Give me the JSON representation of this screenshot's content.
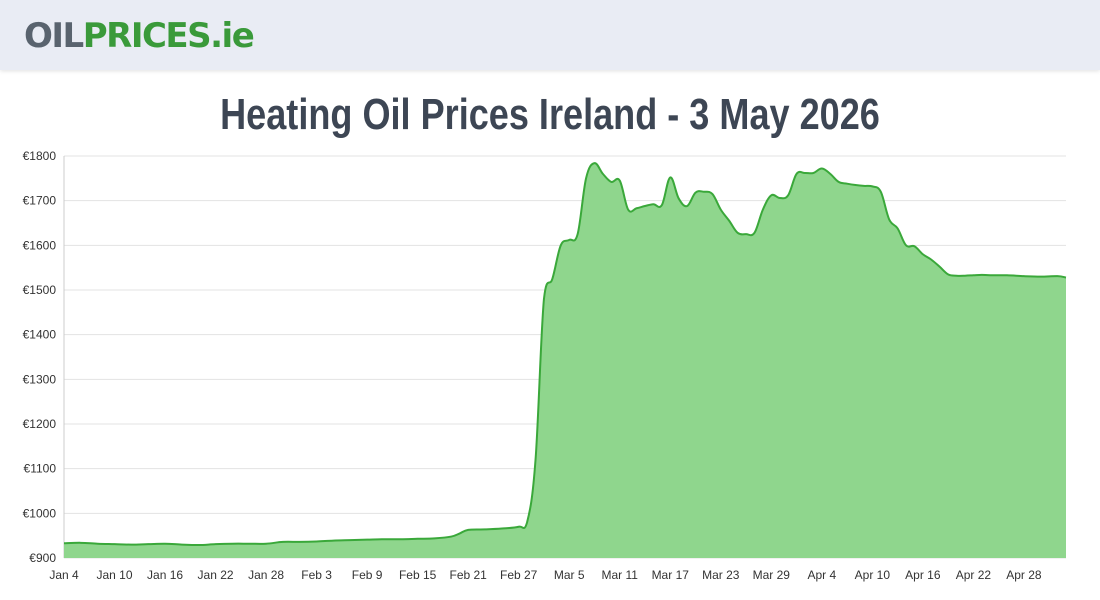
{
  "site": {
    "logo_part1": "OIL",
    "logo_part2": "PRICES",
    "logo_part3": ".ie"
  },
  "page": {
    "title": "Heating Oil Prices Ireland - 3 May 2026"
  },
  "colors": {
    "header_bg": "#e9ecf4",
    "logo_grey": "#59636e",
    "logo_green": "#3a9a3a",
    "line": "#3aa83a",
    "fill": "#8fd68d",
    "grid": "#e3e3e3"
  },
  "chart_data": {
    "type": "area",
    "title": "Heating Oil Prices Ireland - 3 May 2026",
    "xlabel": "",
    "ylabel": "",
    "x_range": [
      "Jan 4",
      "May 3"
    ],
    "ylim": [
      900,
      1800
    ],
    "y_ticks": [
      900,
      1000,
      1100,
      1200,
      1300,
      1400,
      1500,
      1600,
      1700,
      1800
    ],
    "y_tick_labels": [
      "€900",
      "€1000",
      "€1100",
      "€1200",
      "€1300",
      "€1400",
      "€1500",
      "€1600",
      "€1700",
      "€1800"
    ],
    "x_ticks": [
      "Jan 4",
      "Jan 10",
      "Jan 16",
      "Jan 22",
      "Jan 28",
      "Feb 3",
      "Feb 9",
      "Feb 15",
      "Feb 21",
      "Feb 27",
      "Mar 5",
      "Mar 11",
      "Mar 17",
      "Mar 23",
      "Mar 29",
      "Apr 4",
      "Apr 10",
      "Apr 16",
      "Apr 22",
      "Apr 28"
    ],
    "grid": true,
    "legend": "none",
    "series": [
      {
        "x": [
          "Jan 4",
          "Jan 6",
          "Jan 8",
          "Jan 10",
          "Jan 12",
          "Jan 14",
          "Jan 16",
          "Jan 18",
          "Jan 20",
          "Jan 22",
          "Jan 24",
          "Jan 26",
          "Jan 28",
          "Jan 30",
          "Feb 1",
          "Feb 3",
          "Feb 5",
          "Feb 7",
          "Feb 9",
          "Feb 11",
          "Feb 13",
          "Feb 15",
          "Feb 17",
          "Feb 19",
          "Feb 20",
          "Feb 21",
          "Feb 23",
          "Feb 25",
          "Feb 27",
          "Feb 28",
          "Mar 1",
          "Mar 2",
          "Mar 3",
          "Mar 4",
          "Mar 5",
          "Mar 6",
          "Mar 7",
          "Mar 8",
          "Mar 9",
          "Mar 10",
          "Mar 11",
          "Mar 12",
          "Mar 13",
          "Mar 14",
          "Mar 15",
          "Mar 16",
          "Mar 17",
          "Mar 18",
          "Mar 19",
          "Mar 20",
          "Mar 21",
          "Mar 22",
          "Mar 23",
          "Mar 24",
          "Mar 25",
          "Mar 26",
          "Mar 27",
          "Mar 28",
          "Mar 29",
          "Mar 30",
          "Mar 31",
          "Apr 1",
          "Apr 2",
          "Apr 3",
          "Apr 4",
          "Apr 5",
          "Apr 6",
          "Apr 7",
          "Apr 8",
          "Apr 9",
          "Apr 10",
          "Apr 11",
          "Apr 12",
          "Apr 13",
          "Apr 14",
          "Apr 15",
          "Apr 16",
          "Apr 17",
          "Apr 18",
          "Apr 19",
          "Apr 20",
          "Apr 21",
          "Apr 22",
          "Apr 23",
          "Apr 24",
          "Apr 26",
          "Apr 28",
          "Apr 30",
          "May 2",
          "May 3"
        ],
        "values": [
          933,
          934,
          932,
          931,
          930,
          931,
          932,
          930,
          929,
          931,
          932,
          932,
          932,
          936,
          936,
          937,
          939,
          940,
          941,
          942,
          942,
          943,
          944,
          948,
          955,
          963,
          964,
          966,
          970,
          980,
          1120,
          1480,
          1525,
          1600,
          1612,
          1625,
          1750,
          1784,
          1760,
          1742,
          1745,
          1680,
          1683,
          1688,
          1692,
          1690,
          1752,
          1705,
          1688,
          1718,
          1720,
          1715,
          1680,
          1655,
          1628,
          1625,
          1628,
          1680,
          1712,
          1706,
          1712,
          1760,
          1762,
          1762,
          1772,
          1760,
          1742,
          1738,
          1735,
          1733,
          1732,
          1720,
          1658,
          1638,
          1600,
          1598,
          1580,
          1568,
          1552,
          1535,
          1532,
          1532,
          1533,
          1534,
          1533,
          1533,
          1531,
          1530,
          1531,
          1528
        ]
      }
    ]
  }
}
